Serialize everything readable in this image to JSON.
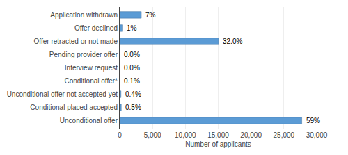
{
  "chart_data": {
    "type": "bar",
    "orientation": "horizontal",
    "categories": [
      "Unconditional offer",
      "Conditional placed accepted",
      "Unconditional offer not accepted yet",
      "Conditional offer*",
      "Interview request",
      "Pending provider offer",
      "Offer retracted or not made",
      "Offer declined",
      "Application withdrawn"
    ],
    "values": [
      27730,
      235,
      188,
      47,
      10,
      10,
      15040,
      470,
      3290
    ],
    "value_labels": [
      "59%",
      "0.5%",
      "0.4%",
      "0.1%",
      "0.0%",
      "0.0%",
      "32.0%",
      "1%",
      "7%"
    ],
    "data_labels": true,
    "color": "#5B9BD5",
    "xlabel": "Number of applicants",
    "xlim": [
      0,
      30000
    ],
    "xticks": [
      0,
      {
        "value": 5000,
        "label": "5,000"
      },
      {
        "value": 10000,
        "label": "10,000"
      },
      {
        "value": 15000,
        "label": "15,000"
      },
      {
        "value": 20000,
        "label": "20,000"
      },
      {
        "value": 25000,
        "label": "25,000"
      },
      {
        "value": 30000,
        "label": "30,000"
      }
    ],
    "grid": true
  }
}
